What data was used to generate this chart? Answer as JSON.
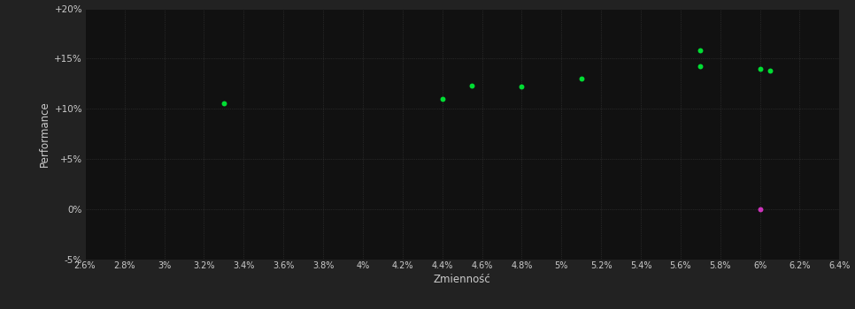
{
  "background_color": "#222222",
  "plot_bg_color": "#111111",
  "grid_color": "#3a3a3a",
  "text_color": "#cccccc",
  "xlabel": "Zmienność",
  "ylabel": "Performance",
  "xlim": [
    0.026,
    0.064
  ],
  "ylim": [
    -0.05,
    0.2
  ],
  "xticks": [
    0.026,
    0.028,
    0.03,
    0.032,
    0.034,
    0.036,
    0.038,
    0.04,
    0.042,
    0.044,
    0.046,
    0.048,
    0.05,
    0.052,
    0.054,
    0.056,
    0.058,
    0.06,
    0.062,
    0.064
  ],
  "xtick_labels": [
    "2.6%",
    "2.8%",
    "3%",
    "3.2%",
    "3.4%",
    "3.6%",
    "3.8%",
    "4%",
    "4.2%",
    "4.4%",
    "4.6%",
    "4.8%",
    "5%",
    "5.2%",
    "5.4%",
    "5.6%",
    "5.8%",
    "6%",
    "6.2%",
    "6.4%"
  ],
  "yticks": [
    -0.05,
    0.0,
    0.05,
    0.1,
    0.15,
    0.2
  ],
  "ytick_labels": [
    "-5%",
    "0%",
    "+5%",
    "+10%",
    "+15%",
    "+20%"
  ],
  "green_dots": [
    [
      0.033,
      0.105
    ],
    [
      0.044,
      0.11
    ],
    [
      0.0455,
      0.123
    ],
    [
      0.048,
      0.122
    ],
    [
      0.051,
      0.13
    ],
    [
      0.057,
      0.158
    ],
    [
      0.057,
      0.142
    ],
    [
      0.06,
      0.14
    ],
    [
      0.0605,
      0.138
    ]
  ],
  "pink_dot": [
    0.06,
    0.0
  ],
  "dot_size": 18,
  "green_color": "#00dd33",
  "pink_color": "#cc33bb"
}
